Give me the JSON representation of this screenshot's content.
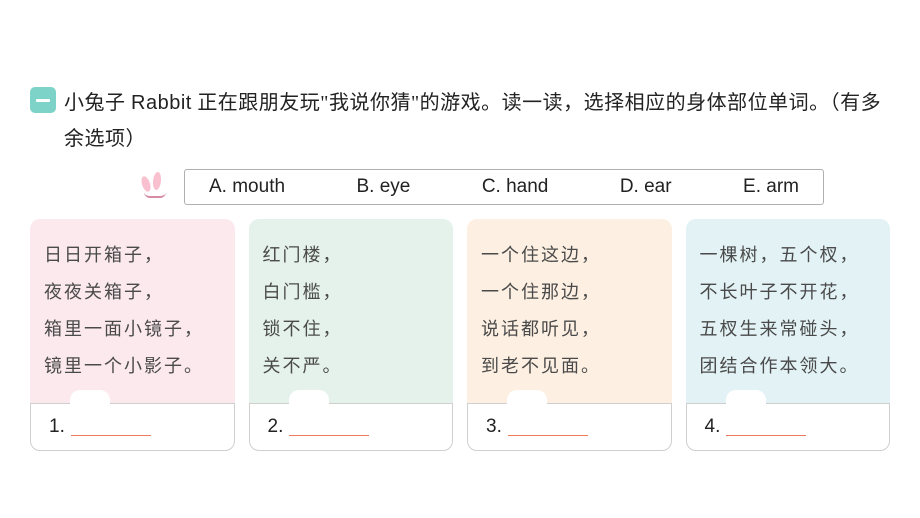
{
  "badge": {
    "bg": "#7ed3c8"
  },
  "instructions": {
    "prefix": "小兔子 ",
    "rabbit_word": "Rabbit",
    "middle": " 正在跟朋友玩\"我说你猜\"的游戏。读一读，选择相应的身体部位单词。（有多余选项）"
  },
  "options": {
    "a": "A. mouth",
    "b": "B. eye",
    "c": "C. hand",
    "d": "D. ear",
    "e": "E. arm",
    "border_color": "#b0b0b0"
  },
  "cards": [
    {
      "bg": "#fbe9ee",
      "lines": [
        "日日开箱子，",
        "夜夜关箱子，",
        "箱里一面小镜子，",
        "镜里一个小影子。"
      ],
      "answer_label": "1."
    },
    {
      "bg": "#e5f2ec",
      "lines": [
        "红门楼，",
        "白门槛，",
        "锁不住，",
        "关不严。"
      ],
      "answer_label": "2."
    },
    {
      "bg": "#fdf0e2",
      "lines": [
        "一个住这边，",
        "一个住那边，",
        "说话都听见，",
        "到老不见面。"
      ],
      "answer_label": "3."
    },
    {
      "bg": "#e2f2f5",
      "lines": [
        "一棵树，五个杈，",
        "不长叶子不开花，",
        "五杈生来常碰头，",
        "团结合作本领大。"
      ],
      "answer_label": "4."
    }
  ],
  "blank_color": "#ef7a5e",
  "answer_border": "#cfcfcf"
}
